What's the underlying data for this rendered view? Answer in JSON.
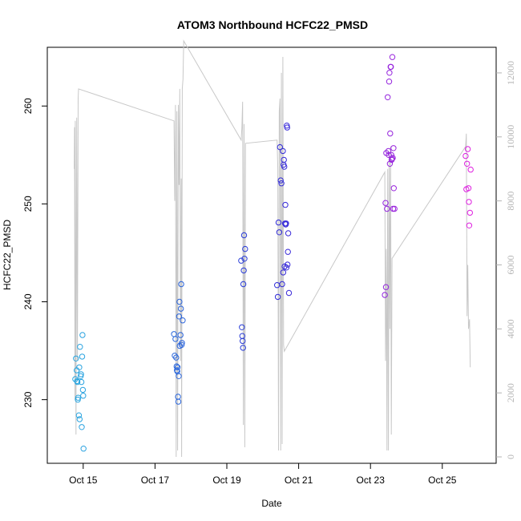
{
  "chart_data": {
    "type": "scatter",
    "title": "ATOM3 Northbound HCFC22_PMSD",
    "xlabel": "Date",
    "ylabel": "HCFC22_PMSD",
    "xlim": [
      "2016-10-14 00:00",
      "2016-10-26 12:00"
    ],
    "ylim": [
      223.5,
      266
    ],
    "y2lim": [
      -200,
      12800
    ],
    "x_ticks": [
      {
        "date": "2016-10-15",
        "label": "Oct 15"
      },
      {
        "date": "2016-10-17",
        "label": "Oct 17"
      },
      {
        "date": "2016-10-19",
        "label": "Oct 19"
      },
      {
        "date": "2016-10-21",
        "label": "Oct 21"
      },
      {
        "date": "2016-10-23",
        "label": "Oct 23"
      },
      {
        "date": "2016-10-25",
        "label": "Oct 25"
      }
    ],
    "y_ticks": [
      230,
      240,
      250,
      260
    ],
    "y2_ticks": [
      0,
      2000,
      4000,
      6000,
      8000,
      10000,
      12000
    ],
    "colors": {
      "points_start": "#2aa7e0",
      "points_mid": "#2a2ad8",
      "points_end": "#e020e0",
      "altitude_line": "#c8c8c8"
    },
    "points": [
      [
        "2016-10-14 19:12",
        234.2
      ],
      [
        "2016-10-14 19:40",
        233.0
      ],
      [
        "2016-10-14 20:10",
        231.8
      ],
      [
        "2016-10-14 20:38",
        230.2
      ],
      [
        "2016-10-14 21:07",
        228.4
      ],
      [
        "2016-10-14 21:36",
        228.0
      ],
      [
        "2016-10-14 18:43",
        232.1
      ],
      [
        "2016-10-14 19:55",
        231.9
      ],
      [
        "2016-10-14 20:24",
        230.0
      ],
      [
        "2016-10-14 21:22",
        233.3
      ],
      [
        "2016-10-14 21:50",
        235.4
      ],
      [
        "2016-10-14 22:19",
        232.4
      ],
      [
        "2016-10-14 22:34",
        232.6
      ],
      [
        "2016-10-14 22:48",
        231.8
      ],
      [
        "2016-10-14 23:02",
        227.2
      ],
      [
        "2016-10-14 23:17",
        234.4
      ],
      [
        "2016-10-14 23:31",
        236.6
      ],
      [
        "2016-10-14 23:46",
        231.0
      ],
      [
        "2016-10-15 00:00",
        230.4
      ],
      [
        "2016-10-15 00:14",
        225.0
      ],
      [
        "2016-10-17 12:43",
        236.7
      ],
      [
        "2016-10-17 13:12",
        234.5
      ],
      [
        "2016-10-17 13:41",
        236.2
      ],
      [
        "2016-10-17 14:10",
        234.3
      ],
      [
        "2016-10-17 14:24",
        233.4
      ],
      [
        "2016-10-17 14:38",
        233.0
      ],
      [
        "2016-10-17 14:53",
        232.9
      ],
      [
        "2016-10-17 15:07",
        233.3
      ],
      [
        "2016-10-17 15:22",
        230.3
      ],
      [
        "2016-10-17 15:36",
        229.8
      ],
      [
        "2016-10-17 15:50",
        232.4
      ],
      [
        "2016-10-17 16:05",
        238.5
      ],
      [
        "2016-10-17 16:19",
        240.0
      ],
      [
        "2016-10-17 16:34",
        235.5
      ],
      [
        "2016-10-17 17:02",
        236.6
      ],
      [
        "2016-10-17 17:17",
        239.3
      ],
      [
        "2016-10-17 17:31",
        241.8
      ],
      [
        "2016-10-17 17:46",
        235.6
      ],
      [
        "2016-10-17 18:00",
        235.8
      ],
      [
        "2016-10-17 18:29",
        238.1
      ],
      [
        "2016-10-19 09:36",
        244.2
      ],
      [
        "2016-10-19 10:05",
        237.4
      ],
      [
        "2016-10-19 10:19",
        236.5
      ],
      [
        "2016-10-19 10:34",
        236.0
      ],
      [
        "2016-10-19 10:48",
        235.3
      ],
      [
        "2016-10-19 11:02",
        241.8
      ],
      [
        "2016-10-19 11:17",
        243.2
      ],
      [
        "2016-10-19 11:31",
        246.8
      ],
      [
        "2016-10-19 11:46",
        244.4
      ],
      [
        "2016-10-19 12:14",
        245.4
      ],
      [
        "2016-10-20 09:36",
        241.7
      ],
      [
        "2016-10-20 10:05",
        240.5
      ],
      [
        "2016-10-20 10:34",
        248.1
      ],
      [
        "2016-10-20 11:02",
        247.1
      ],
      [
        "2016-10-20 11:31",
        255.8
      ],
      [
        "2016-10-20 12:00",
        252.4
      ],
      [
        "2016-10-20 12:29",
        252.1
      ],
      [
        "2016-10-20 12:58",
        241.8
      ],
      [
        "2016-10-20 13:26",
        255.4
      ],
      [
        "2016-10-20 13:41",
        243.0
      ],
      [
        "2016-10-20 13:55",
        254.0
      ],
      [
        "2016-10-20 14:10",
        254.5
      ],
      [
        "2016-10-20 14:24",
        253.8
      ],
      [
        "2016-10-20 14:38",
        243.6
      ],
      [
        "2016-10-20 14:53",
        248.0
      ],
      [
        "2016-10-20 15:07",
        249.9
      ],
      [
        "2016-10-20 15:22",
        247.9
      ],
      [
        "2016-10-20 15:36",
        248.0
      ],
      [
        "2016-10-20 15:50",
        243.5
      ],
      [
        "2016-10-20 16:05",
        258.0
      ],
      [
        "2016-10-20 16:19",
        257.8
      ],
      [
        "2016-10-20 16:34",
        243.8
      ],
      [
        "2016-10-20 16:48",
        245.1
      ],
      [
        "2016-10-20 17:02",
        247.0
      ],
      [
        "2016-10-20 17:31",
        240.9
      ],
      [
        "2016-10-23 09:36",
        240.7
      ],
      [
        "2016-10-23 10:05",
        250.1
      ],
      [
        "2016-10-23 10:19",
        241.5
      ],
      [
        "2016-10-23 10:34",
        255.2
      ],
      [
        "2016-10-23 11:02",
        249.5
      ],
      [
        "2016-10-23 11:31",
        260.9
      ],
      [
        "2016-10-23 12:00",
        255.4
      ],
      [
        "2016-10-23 12:14",
        255.0
      ],
      [
        "2016-10-23 12:29",
        262.5
      ],
      [
        "2016-10-23 12:43",
        263.4
      ],
      [
        "2016-10-23 12:58",
        254.1
      ],
      [
        "2016-10-23 13:12",
        257.2
      ],
      [
        "2016-10-23 13:26",
        264.0
      ],
      [
        "2016-10-23 13:41",
        264.0
      ],
      [
        "2016-10-23 13:55",
        255.0
      ],
      [
        "2016-10-23 14:10",
        254.5
      ],
      [
        "2016-10-23 14:24",
        254.6
      ],
      [
        "2016-10-23 14:38",
        265.0
      ],
      [
        "2016-10-23 14:53",
        254.7
      ],
      [
        "2016-10-23 15:07",
        249.5
      ],
      [
        "2016-10-23 15:22",
        255.7
      ],
      [
        "2016-10-23 15:36",
        251.6
      ],
      [
        "2016-10-23 16:05",
        249.5
      ],
      [
        "2016-10-25 15:36",
        254.9
      ],
      [
        "2016-10-25 16:05",
        251.5
      ],
      [
        "2016-10-25 16:34",
        254.1
      ],
      [
        "2016-10-25 17:02",
        255.6
      ],
      [
        "2016-10-25 17:31",
        251.6
      ],
      [
        "2016-10-25 17:46",
        250.2
      ],
      [
        "2016-10-25 18:00",
        247.8
      ],
      [
        "2016-10-25 18:29",
        249.1
      ],
      [
        "2016-10-25 18:58",
        253.5
      ]
    ],
    "altitude_line": [
      [
        "2016-10-14 18:00",
        9000
      ],
      [
        "2016-10-14 18:14",
        10300
      ],
      [
        "2016-10-14 18:29",
        1800
      ],
      [
        "2016-10-14 18:43",
        10500
      ],
      [
        "2016-10-14 19:12",
        700
      ],
      [
        "2016-10-14 19:40",
        10600
      ],
      [
        "2016-10-14 20:10",
        3000
      ],
      [
        "2016-10-14 20:38",
        11200
      ],
      [
        "2016-10-14 20:53",
        11500
      ],
      [
        "2016-10-17 12:43",
        10500
      ],
      [
        "2016-10-17 13:12",
        8000
      ],
      [
        "2016-10-17 13:41",
        11000
      ],
      [
        "2016-10-17 14:10",
        0
      ],
      [
        "2016-10-17 14:38",
        10800
      ],
      [
        "2016-10-17 15:07",
        200
      ],
      [
        "2016-10-17 15:36",
        11000
      ],
      [
        "2016-10-17 16:05",
        8500
      ],
      [
        "2016-10-17 16:34",
        11500
      ],
      [
        "2016-10-17 17:02",
        3000
      ],
      [
        "2016-10-17 17:31",
        8700
      ],
      [
        "2016-10-17 17:46",
        0
      ],
      [
        "2016-10-17 18:14",
        11500
      ],
      [
        "2016-10-17 18:43",
        11800
      ],
      [
        "2016-10-17 19:12",
        13000
      ],
      [
        "2016-10-19 09:36",
        9900
      ],
      [
        "2016-10-19 10:05",
        10300
      ],
      [
        "2016-10-19 10:34",
        11100
      ],
      [
        "2016-10-19 11:02",
        1000
      ],
      [
        "2016-10-19 11:31",
        10400
      ],
      [
        "2016-10-19 12:00",
        300
      ],
      [
        "2016-10-19 12:29",
        9800
      ],
      [
        "2016-10-20 09:36",
        9900
      ],
      [
        "2016-10-20 10:05",
        9000
      ],
      [
        "2016-10-20 10:34",
        200
      ],
      [
        "2016-10-20 11:02",
        10800
      ],
      [
        "2016-10-20 11:31",
        11200
      ],
      [
        "2016-10-20 12:00",
        200
      ],
      [
        "2016-10-20 12:29",
        12000
      ],
      [
        "2016-10-20 12:58",
        400
      ],
      [
        "2016-10-20 13:26",
        12500
      ],
      [
        "2016-10-20 13:55",
        3500
      ],
      [
        "2016-10-20 14:24",
        3300
      ],
      [
        "2016-10-23 09:36",
        8900
      ],
      [
        "2016-10-23 10:05",
        3000
      ],
      [
        "2016-10-23 10:34",
        6500
      ],
      [
        "2016-10-23 11:02",
        200
      ],
      [
        "2016-10-23 11:31",
        9000
      ],
      [
        "2016-10-23 12:00",
        200
      ],
      [
        "2016-10-23 12:29",
        9500
      ],
      [
        "2016-10-23 12:58",
        4000
      ],
      [
        "2016-10-23 13:26",
        9700
      ],
      [
        "2016-10-23 13:55",
        700
      ],
      [
        "2016-10-23 14:24",
        6200
      ],
      [
        "2016-10-25 15:36",
        9700
      ],
      [
        "2016-10-25 16:05",
        10100
      ],
      [
        "2016-10-25 16:34",
        4400
      ],
      [
        "2016-10-25 17:02",
        6000
      ],
      [
        "2016-10-25 17:31",
        4000
      ],
      [
        "2016-10-25 18:14",
        4300
      ],
      [
        "2016-10-25 18:43",
        2800
      ]
    ]
  }
}
